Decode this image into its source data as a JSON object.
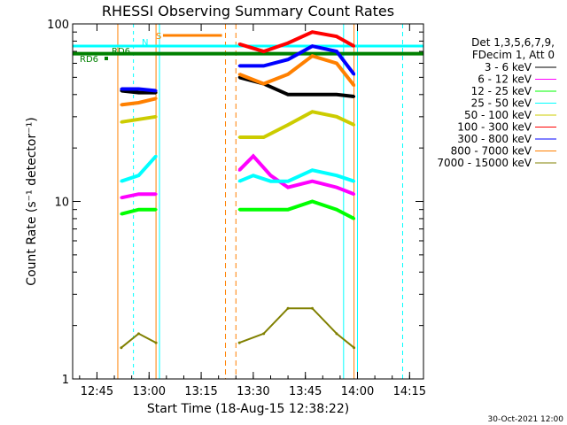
{
  "chart_data": {
    "type": "line",
    "title": "RHESSI Observing Summary Count Rates",
    "xlabel": "Start Time (18-Aug-15 12:38:22)",
    "ylabel": "Count Rate (s⁻¹ detector⁻¹)",
    "y_scale": "log",
    "ylim": [
      1,
      100
    ],
    "xlim": [
      "12:38",
      "14:19"
    ],
    "x_ticks": [
      "12:45",
      "13:00",
      "13:15",
      "13:30",
      "13:45",
      "14:00",
      "14:15"
    ],
    "y_ticks": [
      "1",
      "10",
      "100"
    ],
    "legend_header": [
      "Det 1,3,5,6,7,9,",
      "FDecim 1, Att 0"
    ],
    "legend_position": "right",
    "series": [
      {
        "name": "3 - 6 keV",
        "color": "#000000",
        "x": [
          "12:52",
          "12:57",
          "13:02",
          "13:26",
          "13:33",
          "13:40",
          "13:47",
          "13:54",
          "13:59"
        ],
        "y": [
          42,
          41,
          41,
          50,
          46,
          40,
          40,
          40,
          39
        ]
      },
      {
        "name": "6 - 12 keV",
        "color": "#ff00ff",
        "x": [
          "12:52",
          "12:57",
          "13:02",
          "13:26",
          "13:30",
          "13:35",
          "13:40",
          "13:47",
          "13:54",
          "13:59"
        ],
        "y": [
          10.5,
          11,
          11,
          15,
          18,
          14,
          12,
          13,
          12,
          11
        ]
      },
      {
        "name": "12 - 25 keV",
        "color": "#00ff00",
        "x": [
          "12:52",
          "12:57",
          "13:02",
          "13:26",
          "13:30",
          "13:35",
          "13:40",
          "13:47",
          "13:54",
          "13:59"
        ],
        "y": [
          8.5,
          9,
          9,
          9,
          9,
          9,
          9,
          10,
          9,
          8
        ]
      },
      {
        "name": "25 - 50 keV",
        "color": "#00ffff",
        "x": [
          "12:52",
          "12:57",
          "13:02",
          "13:26",
          "13:30",
          "13:35",
          "13:40",
          "13:47",
          "13:54",
          "13:59"
        ],
        "y": [
          13,
          14,
          18,
          13,
          14,
          13,
          13,
          15,
          14,
          13
        ]
      },
      {
        "name": "50 - 100 keV",
        "color": "#cccc00",
        "x": [
          "12:52",
          "12:57",
          "13:02",
          "13:26",
          "13:33",
          "13:40",
          "13:47",
          "13:54",
          "13:59"
        ],
        "y": [
          28,
          29,
          30,
          23,
          23,
          27,
          32,
          30,
          27
        ]
      },
      {
        "name": "100 - 300 keV",
        "color": "#ff0000",
        "x": [
          "13:26",
          "13:33",
          "13:40",
          "13:47",
          "13:54",
          "13:59"
        ],
        "y": [
          77,
          70,
          78,
          90,
          85,
          75
        ]
      },
      {
        "name": "300 - 800 keV",
        "color": "#0000ff",
        "x": [
          "12:52",
          "12:57",
          "13:02",
          "13:26",
          "13:33",
          "13:40",
          "13:47",
          "13:54",
          "13:59"
        ],
        "y": [
          43,
          43,
          42,
          58,
          58,
          63,
          75,
          70,
          52
        ]
      },
      {
        "name": "800 - 7000 keV",
        "color": "#ff8000",
        "x": [
          "12:52",
          "12:57",
          "13:02",
          "13:26",
          "13:33",
          "13:40",
          "13:47",
          "13:54",
          "13:59"
        ],
        "y": [
          35,
          36,
          38,
          52,
          46,
          52,
          66,
          60,
          45
        ]
      },
      {
        "name": "7000 - 15000 keV",
        "color": "#808000",
        "x": [
          "12:52",
          "12:57",
          "13:02",
          "13:26",
          "13:33",
          "13:40",
          "13:47",
          "13:54",
          "13:59"
        ],
        "y": [
          1.5,
          1.8,
          1.6,
          1.6,
          1.8,
          2.5,
          2.5,
          1.8,
          1.5
        ]
      }
    ],
    "reference_lines": [
      {
        "label": "N",
        "color": "#00ffff",
        "y": 75
      },
      {
        "label": "RD6",
        "color": "#008000",
        "y": 68
      }
    ],
    "annotations": [
      {
        "text": "S",
        "color": "#ff8000"
      },
      {
        "text": "N",
        "color": "#00ffff"
      },
      {
        "text": "RD6",
        "color": "#008000"
      },
      {
        "text": "RD6",
        "color": "#008000"
      }
    ],
    "grid": false,
    "footer_date": "30-Oct-2021 12:00"
  }
}
